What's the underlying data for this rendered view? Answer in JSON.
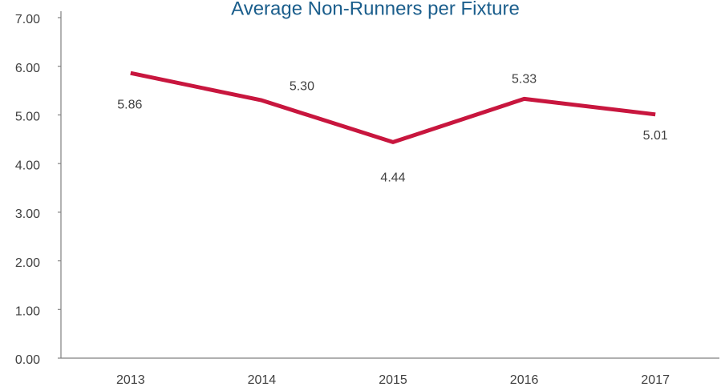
{
  "chart_data": {
    "type": "line",
    "title": "Average Non-Runners per Fixture",
    "categories": [
      "2013",
      "2014",
      "2015",
      "2016",
      "2017"
    ],
    "series": [
      {
        "name": "Average Non-Runners per Fixture",
        "color": "#c8163e",
        "values": [
          5.86,
          5.3,
          4.44,
          5.33,
          5.01
        ],
        "value_labels": [
          "5.86",
          "5.30",
          "4.44",
          "5.33",
          "5.01"
        ]
      }
    ],
    "ylim": [
      0,
      7
    ],
    "yticks": [
      {
        "value": 0,
        "label": "0.00"
      },
      {
        "value": 1,
        "label": "1.00"
      },
      {
        "value": 2,
        "label": "2.00"
      },
      {
        "value": 3,
        "label": "3.00"
      },
      {
        "value": 4,
        "label": "4.00"
      },
      {
        "value": 5,
        "label": "5.00"
      },
      {
        "value": 6,
        "label": "6.00"
      },
      {
        "value": 7,
        "label": "7.00"
      }
    ],
    "grid": false
  }
}
